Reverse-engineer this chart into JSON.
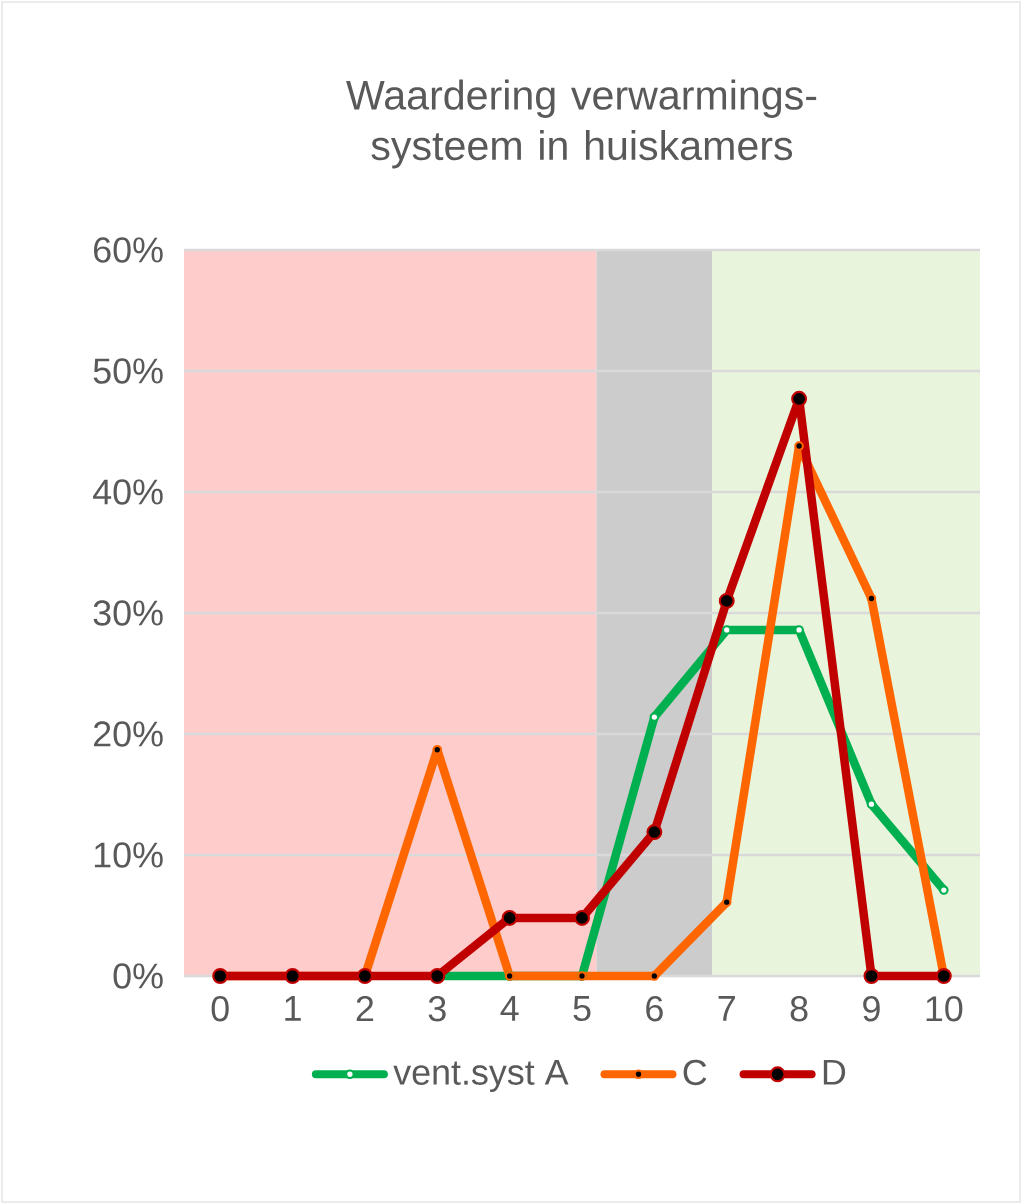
{
  "chart_data": {
    "type": "line",
    "title": "Waardering verwarmings-systeem in huiskamers",
    "x": [
      0,
      1,
      2,
      3,
      4,
      5,
      6,
      7,
      8,
      9,
      10
    ],
    "xlim": [
      -0.5,
      10.5
    ],
    "xticks": [
      0,
      1,
      2,
      3,
      4,
      5,
      6,
      7,
      8,
      9,
      10
    ],
    "ylim": [
      0,
      60
    ],
    "yticks": [
      {
        "value": 0,
        "label": "0%"
      },
      {
        "value": 10,
        "label": "10%"
      },
      {
        "value": 20,
        "label": "20%"
      },
      {
        "value": 30,
        "label": "30%"
      },
      {
        "value": 40,
        "label": "40%"
      },
      {
        "value": 50,
        "label": "50%"
      },
      {
        "value": 60,
        "label": "60%"
      }
    ],
    "series": [
      {
        "name": "vent.syst A",
        "color": "#00b050",
        "values": [
          null,
          null,
          null,
          0,
          0,
          0,
          21.4,
          28.6,
          28.6,
          14.2,
          7.1
        ]
      },
      {
        "name": "C",
        "color": "#ff6600",
        "values": [
          0,
          0,
          0,
          18.7,
          0,
          0,
          0,
          6.1,
          43.8,
          31.2,
          0
        ]
      },
      {
        "name": "D",
        "color": "#c00000",
        "values": [
          0,
          0,
          0,
          0,
          4.8,
          4.8,
          11.9,
          31.0,
          47.7,
          0,
          0
        ]
      }
    ],
    "bands": [
      {
        "axis": "x",
        "from": -0.5,
        "to": 5.2,
        "color": "#ffcccc"
      },
      {
        "axis": "x",
        "from": 5.2,
        "to": 6.8,
        "color": "#cccccc"
      },
      {
        "axis": "x",
        "from": 6.8,
        "to": 10.5,
        "color": "#e8f4dc"
      }
    ],
    "grid": "y",
    "legend": "bottom",
    "marker": "circle",
    "line_style": "solid"
  }
}
